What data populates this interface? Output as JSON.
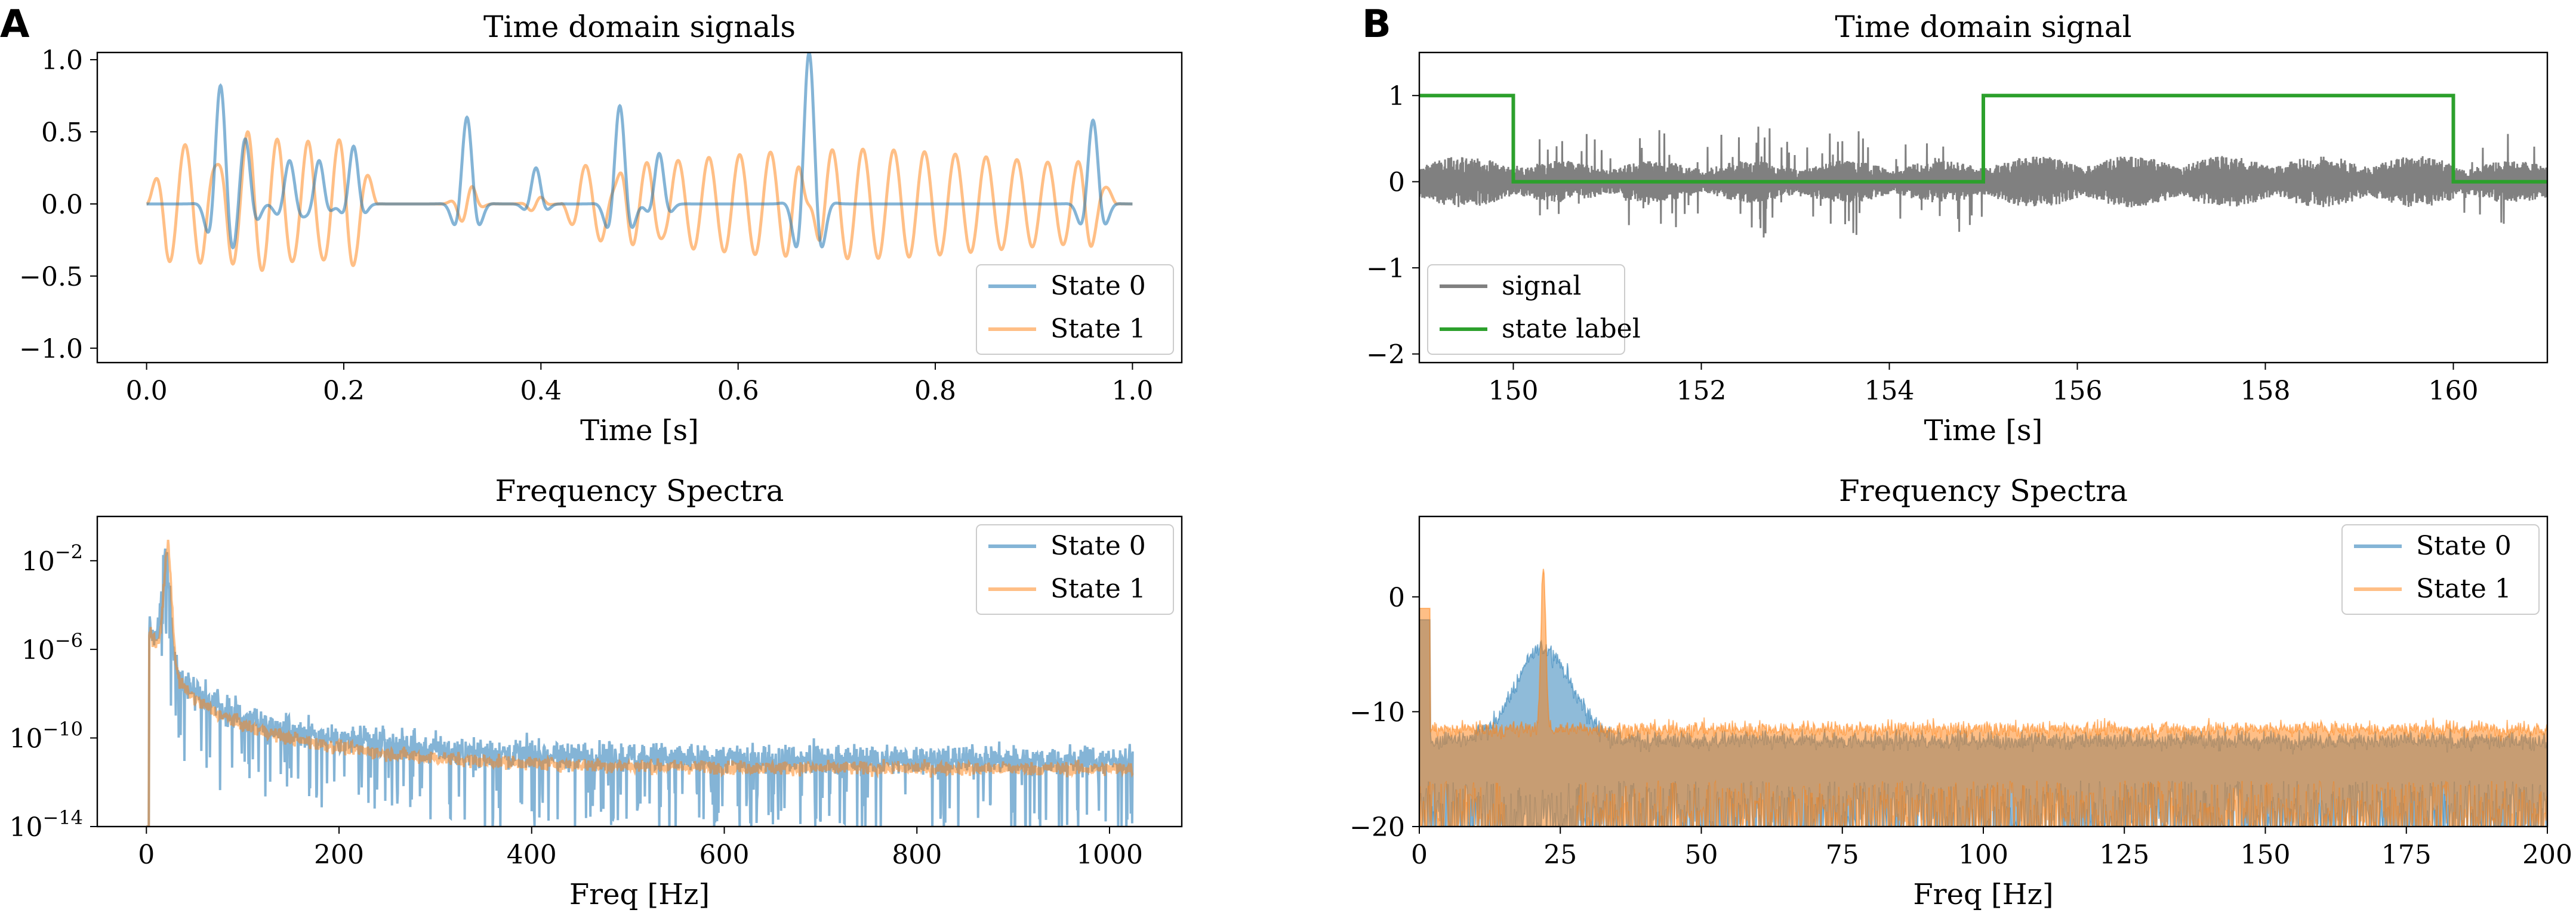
{
  "panel_labels": [
    "A",
    "B"
  ],
  "colors": {
    "state0": "#1f77b4",
    "state1": "#ff7f0e",
    "signal": "#808080",
    "state_label": "#2ca02c"
  },
  "chart_data": [
    {
      "id": "A-time",
      "type": "line",
      "title": "Time domain signals",
      "xlabel": "Time [s]",
      "ylabel": "",
      "xlim": [
        -0.05,
        1.05
      ],
      "ylim": [
        -1.1,
        1.05
      ],
      "xticks": [
        0.0,
        0.2,
        0.4,
        0.6,
        0.8,
        1.0
      ],
      "xtick_labels": [
        "0.0",
        "0.2",
        "0.4",
        "0.6",
        "0.8",
        "1.0"
      ],
      "yticks": [
        -1.0,
        -0.5,
        0.0,
        0.5,
        1.0
      ],
      "ytick_labels": [
        "−1.0",
        "−0.5",
        "0.0",
        "0.5",
        "1.0"
      ],
      "legend": {
        "position": "lower-right",
        "entries": [
          "State 0",
          "State 1"
        ]
      },
      "series": [
        {
          "name": "State 0",
          "color": "#1f77b4",
          "alpha": 0.55,
          "bursts": [
            {
              "t": 0.075,
              "amp": 0.82,
              "width": 0.012
            },
            {
              "t": 0.1,
              "amp": 0.45,
              "width": 0.012
            },
            {
              "t": 0.145,
              "amp": 0.3,
              "width": 0.012
            },
            {
              "t": 0.175,
              "amp": 0.3,
              "width": 0.01
            },
            {
              "t": 0.21,
              "amp": 0.4,
              "width": 0.01
            },
            {
              "t": 0.325,
              "amp": 0.6,
              "width": 0.012
            },
            {
              "t": 0.395,
              "amp": 0.25,
              "width": 0.01
            },
            {
              "t": 0.48,
              "amp": 0.68,
              "width": 0.012
            },
            {
              "t": 0.52,
              "amp": 0.35,
              "width": 0.01
            },
            {
              "t": 0.672,
              "amp": 1.05,
              "width": 0.013
            },
            {
              "t": 0.96,
              "amp": 0.58,
              "width": 0.012
            }
          ],
          "osc_hz": 30
        },
        {
          "name": "State 1",
          "color": "#ff7f0e",
          "alpha": 0.5,
          "segments": [
            [
              0.0,
              0.235,
              0.45
            ],
            [
              0.42,
              0.985,
              0.38
            ]
          ],
          "osc_hz": 32
        }
      ]
    },
    {
      "id": "A-spectra",
      "type": "line",
      "title": "Frequency Spectra",
      "xlabel": "Freq [Hz]",
      "ylabel": "",
      "xscale": "linear",
      "yscale": "log",
      "xlim": [
        -51,
        1075
      ],
      "ylog10_lim": [
        -14,
        0
      ],
      "xticks": [
        0,
        200,
        400,
        600,
        800,
        1000
      ],
      "xtick_labels": [
        "0",
        "200",
        "400",
        "600",
        "800",
        "1000"
      ],
      "yticks_log10": [
        -2,
        -6,
        -10,
        -14
      ],
      "ytick_labels": [
        "10−2",
        "10−6",
        "10−10",
        "10−14"
      ],
      "ytick_base": "10",
      "ytick_exponents": [
        "−2",
        "−6",
        "−10",
        "−14"
      ],
      "legend": {
        "position": "top-right",
        "entries": [
          "State 0",
          "State 1"
        ]
      },
      "series": [
        {
          "name": "State 0",
          "color": "#1f77b4",
          "peak_hz": 20,
          "peak_log10": -1.8,
          "floor_log10": -11.0,
          "noise": 1.1
        },
        {
          "name": "State 1",
          "color": "#ff7f0e",
          "peak_hz": 22,
          "peak_log10": -1.4,
          "floor_log10": -11.4,
          "noise": 0.5
        }
      ]
    },
    {
      "id": "B-time",
      "type": "line",
      "title": "Time domain signal",
      "xlabel": "Time [s]",
      "ylabel": "",
      "xlim": [
        149,
        161
      ],
      "ylim": [
        -2.1,
        1.5
      ],
      "xticks": [
        150,
        152,
        154,
        156,
        158,
        160
      ],
      "xtick_labels": [
        "150",
        "152",
        "154",
        "156",
        "158",
        "160"
      ],
      "yticks": [
        1,
        0,
        -1,
        -2
      ],
      "ytick_labels": [
        "1",
        "0",
        "−1",
        "−2"
      ],
      "legend": {
        "position": "lower-left",
        "entries": [
          "signal",
          "state label"
        ]
      },
      "state_label": {
        "name": "state label",
        "color": "#2ca02c",
        "steps": [
          [
            149,
            1
          ],
          [
            150,
            0
          ],
          [
            155,
            1
          ],
          [
            160,
            0
          ],
          [
            161,
            0
          ]
        ]
      },
      "signal": {
        "name": "signal",
        "color": "#808080",
        "amplitude": 0.35
      }
    },
    {
      "id": "B-spectra",
      "type": "area",
      "title": "Frequency Spectra",
      "xlabel": "Freq [Hz]",
      "ylabel": "",
      "xlim": [
        0,
        200
      ],
      "ylim": [
        -20,
        7
      ],
      "xticks": [
        0,
        25,
        50,
        75,
        100,
        125,
        150,
        175,
        200
      ],
      "xtick_labels": [
        "0",
        "25",
        "50",
        "75",
        "100",
        "125",
        "150",
        "175",
        "200"
      ],
      "yticks": [
        0,
        -10,
        -20
      ],
      "ytick_labels": [
        "0",
        "−10",
        "−20"
      ],
      "legend": {
        "position": "top-right",
        "entries": [
          "State 0",
          "State 1"
        ]
      },
      "series": [
        {
          "name": "State 0",
          "color": "#1f77b4",
          "upper_floor": -12.5,
          "hump_center": 22,
          "hump_peak": -4.5,
          "lower": -20
        },
        {
          "name": "State 1",
          "color": "#ff7f0e",
          "upper_floor": -11.5,
          "peak_hz": 22,
          "peak_value": 2.5,
          "lower": -20
        }
      ]
    }
  ]
}
